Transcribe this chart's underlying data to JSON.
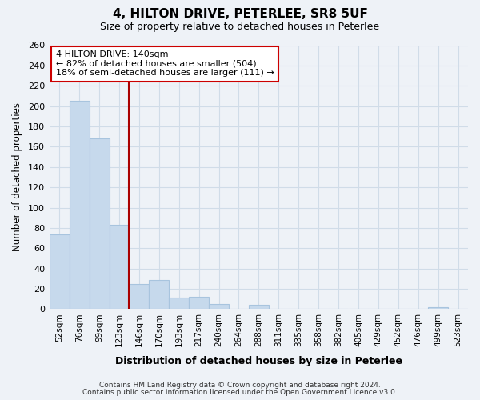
{
  "title": "4, HILTON DRIVE, PETERLEE, SR8 5UF",
  "subtitle": "Size of property relative to detached houses in Peterlee",
  "xlabel": "Distribution of detached houses by size in Peterlee",
  "ylabel": "Number of detached properties",
  "footnote1": "Contains HM Land Registry data © Crown copyright and database right 2024.",
  "footnote2": "Contains public sector information licensed under the Open Government Licence v3.0.",
  "bar_labels": [
    "52sqm",
    "76sqm",
    "99sqm",
    "123sqm",
    "146sqm",
    "170sqm",
    "193sqm",
    "217sqm",
    "240sqm",
    "264sqm",
    "288sqm",
    "311sqm",
    "335sqm",
    "358sqm",
    "382sqm",
    "405sqm",
    "429sqm",
    "452sqm",
    "476sqm",
    "499sqm",
    "523sqm"
  ],
  "bar_values": [
    74,
    205,
    168,
    83,
    25,
    29,
    11,
    12,
    5,
    0,
    4,
    0,
    0,
    0,
    0,
    0,
    0,
    0,
    0,
    2,
    0
  ],
  "bar_color": "#c6d9ec",
  "bar_edgecolor": "#a8c4de",
  "reference_line_index": 3.5,
  "reference_line_color": "#aa0000",
  "annotation_text_line1": "4 HILTON DRIVE: 140sqm",
  "annotation_text_line2": "← 82% of detached houses are smaller (504)",
  "annotation_text_line3": "18% of semi-detached houses are larger (111) →",
  "annotation_box_edgecolor": "#cc0000",
  "annotation_box_facecolor": "#ffffff",
  "ylim": [
    0,
    260
  ],
  "yticks": [
    0,
    20,
    40,
    60,
    80,
    100,
    120,
    140,
    160,
    180,
    200,
    220,
    240,
    260
  ],
  "grid_color": "#d0dce8",
  "background_color": "#eef2f7"
}
